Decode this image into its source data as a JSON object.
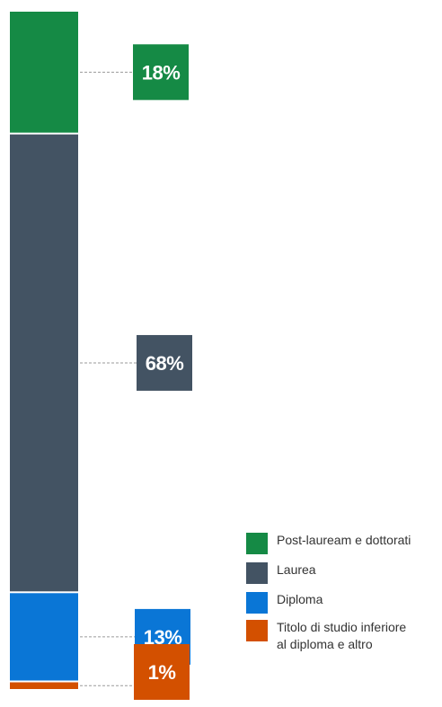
{
  "chart_data": {
    "type": "stacked-bar",
    "series": [
      {
        "name": "Post-lauream e dottorati",
        "value": 18,
        "label": "18%",
        "color": "#158a45"
      },
      {
        "name": "Laurea",
        "value": 68,
        "label": "68%",
        "color": "#435363"
      },
      {
        "name": "Diploma",
        "value": 13,
        "label": "13%",
        "color": "#0a76d6"
      },
      {
        "name": "Titolo di studio inferiore al diploma e altro",
        "value": 1,
        "label": "1%",
        "color": "#d35000"
      }
    ],
    "legend": {
      "placement": "bottom-right",
      "items": [
        {
          "text": "Post-lauream e dottorati",
          "color": "#158a45"
        },
        {
          "text": "Laurea",
          "color": "#435363"
        },
        {
          "text": "Diploma",
          "color": "#0a76d6"
        },
        {
          "line1": "Titolo di studio inferiore",
          "line2": "al diploma e altro",
          "color": "#d35000"
        }
      ]
    }
  }
}
